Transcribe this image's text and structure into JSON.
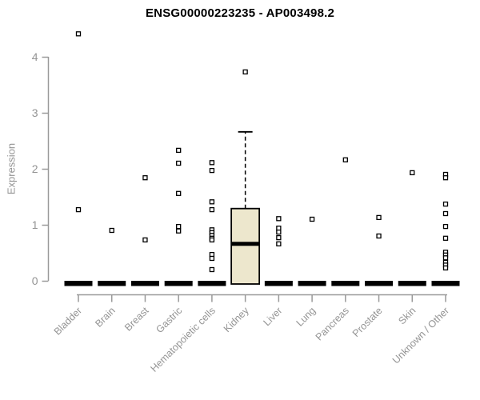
{
  "chart_data": {
    "type": "boxplot",
    "title": "ENSG00000223235 - AP003498.2",
    "ylabel": "Expression",
    "xlabel": "",
    "ylim": [
      0,
      4.5
    ],
    "yticks": [
      0,
      1,
      2,
      3,
      4
    ],
    "grid": "off",
    "legend": "none",
    "categories": [
      "Bladder",
      "Brain",
      "Breast",
      "Gastric",
      "Hematopoietic cells",
      "Kidney",
      "Liver",
      "Lung",
      "Pancreas",
      "Prostate",
      "Skin",
      "Unknown / Other"
    ],
    "series": [
      {
        "category": "Bladder",
        "q1": 0,
        "median": 0,
        "q3": 0,
        "whisker_low": 0,
        "whisker_high": 0,
        "outliers": [
          4.41,
          1.27
        ]
      },
      {
        "category": "Brain",
        "q1": 0,
        "median": 0,
        "q3": 0,
        "whisker_low": 0,
        "whisker_high": 0,
        "outliers": [
          0.9
        ]
      },
      {
        "category": "Breast",
        "q1": 0,
        "median": 0,
        "q3": 0,
        "whisker_low": 0,
        "whisker_high": 0,
        "outliers": [
          1.84,
          0.73
        ]
      },
      {
        "category": "Gastric",
        "q1": 0,
        "median": 0,
        "q3": 0,
        "whisker_low": 0,
        "whisker_high": 0,
        "outliers": [
          2.33,
          2.1,
          1.56,
          0.97,
          0.89
        ]
      },
      {
        "category": "Hematopoietic cells",
        "q1": 0,
        "median": 0,
        "q3": 0,
        "whisker_low": 0,
        "whisker_high": 0,
        "outliers": [
          2.11,
          1.97,
          1.41,
          1.27,
          0.91,
          0.86,
          0.81,
          0.76,
          0.73,
          0.47,
          0.4,
          0.2
        ]
      },
      {
        "category": "Kidney",
        "q1": 0,
        "median": 0.66,
        "q3": 1.29,
        "whisker_low": 0,
        "whisker_high": 2.66,
        "outliers": [
          3.73
        ]
      },
      {
        "category": "Liver",
        "q1": 0,
        "median": 0,
        "q3": 0,
        "whisker_low": 0,
        "whisker_high": 0,
        "outliers": [
          1.11,
          0.94,
          0.87,
          0.77,
          0.66
        ]
      },
      {
        "category": "Lung",
        "q1": 0,
        "median": 0,
        "q3": 0,
        "whisker_low": 0,
        "whisker_high": 0,
        "outliers": [
          1.1
        ]
      },
      {
        "category": "Pancreas",
        "q1": 0,
        "median": 0,
        "q3": 0,
        "whisker_low": 0,
        "whisker_high": 0,
        "outliers": [
          2.16
        ]
      },
      {
        "category": "Prostate",
        "q1": 0,
        "median": 0,
        "q3": 0,
        "whisker_low": 0,
        "whisker_high": 0,
        "outliers": [
          1.13,
          0.8
        ]
      },
      {
        "category": "Skin",
        "q1": 0,
        "median": 0,
        "q3": 0,
        "whisker_low": 0,
        "whisker_high": 0,
        "outliers": [
          1.93
        ]
      },
      {
        "category": "Unknown / Other",
        "q1": 0,
        "median": 0,
        "q3": 0,
        "whisker_low": 0,
        "whisker_high": 0,
        "outliers": [
          1.9,
          1.84,
          1.37,
          1.2,
          0.97,
          0.76,
          0.51,
          0.46,
          0.41,
          0.33,
          0.28,
          0.23
        ]
      }
    ],
    "colors": {
      "box_fill": "#EDE7CD",
      "box_stroke": "#000000",
      "median": "#000000",
      "marker_stroke": "#000000",
      "marker_fill": "#ffffff",
      "axis": "#999999",
      "tick_label": "#949494",
      "category_label": "#949494",
      "title": "#000000"
    }
  }
}
